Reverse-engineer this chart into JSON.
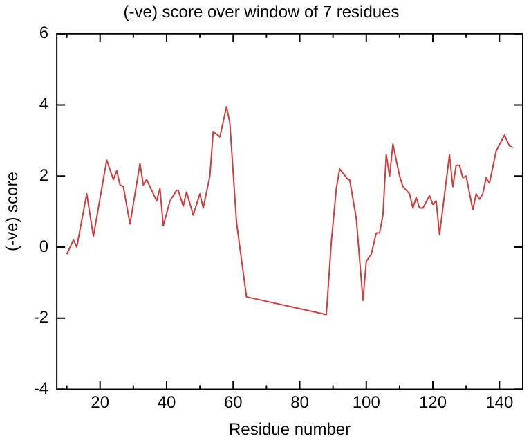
{
  "chart_data": {
    "type": "line",
    "title": "(-ve) score over window of 7 residues",
    "xlabel": "Residue number",
    "ylabel": "(-ve) score",
    "x": [
      10,
      12,
      13,
      16,
      18,
      22,
      24,
      25,
      26,
      27,
      29,
      32,
      33,
      34,
      37,
      38,
      39,
      41,
      43,
      43.5,
      45,
      46,
      48,
      50,
      51,
      53,
      54,
      56,
      58,
      59,
      61,
      64,
      88,
      89.5,
      91,
      92,
      94.5,
      95,
      97,
      99,
      100,
      101.5,
      103,
      104,
      105,
      106,
      107,
      108,
      110,
      111,
      113,
      114,
      115,
      116,
      117,
      119,
      120,
      121,
      122,
      125,
      126,
      127,
      128,
      129,
      130,
      132,
      133,
      134,
      135,
      136,
      137,
      139,
      141.5,
      143,
      144
    ],
    "series": [
      {
        "color": "#d23c3c",
        "values": [
          -0.2,
          0.2,
          0,
          1.5,
          0.3,
          2.45,
          1.9,
          2.15,
          1.75,
          1.7,
          0.65,
          2.35,
          1.75,
          1.9,
          1.3,
          1.65,
          0.6,
          1.3,
          1.6,
          1.6,
          1.15,
          1.55,
          0.9,
          1.5,
          1.1,
          2,
          3.25,
          3.1,
          3.95,
          3.5,
          0.7,
          -1.4,
          -1.9,
          0.15,
          1.65,
          2.2,
          1.9,
          1.9,
          0.8,
          -1.5,
          -0.4,
          -0.2,
          0.4,
          0.4,
          0.9,
          2.6,
          2,
          2.9,
          2,
          1.7,
          1.5,
          1.1,
          1.4,
          1.1,
          1.1,
          1.45,
          1.2,
          1.3,
          0.35,
          2.6,
          1.7,
          2.3,
          2.3,
          1.95,
          2,
          1.05,
          1.5,
          1.35,
          1.5,
          1.95,
          1.8,
          2.7,
          3.15,
          2.85,
          2.8
        ]
      }
    ],
    "xlim": [
      7,
      147
    ],
    "xticks": [
      {
        "value": 10,
        "label": null
      },
      20,
      {
        "value": 30,
        "label": null
      },
      40,
      {
        "value": 50,
        "label": null
      },
      60,
      {
        "value": 70,
        "label": null
      },
      80,
      {
        "value": 90,
        "label": null
      },
      100,
      {
        "value": 110,
        "label": null
      },
      120,
      {
        "value": 130,
        "label": null
      },
      140
    ],
    "ylim": [
      -4,
      6
    ],
    "yticks": [
      -4,
      -2,
      0,
      2,
      4,
      6
    ],
    "grid": false,
    "legend": false,
    "marker": "none",
    "line_style": "solid"
  }
}
